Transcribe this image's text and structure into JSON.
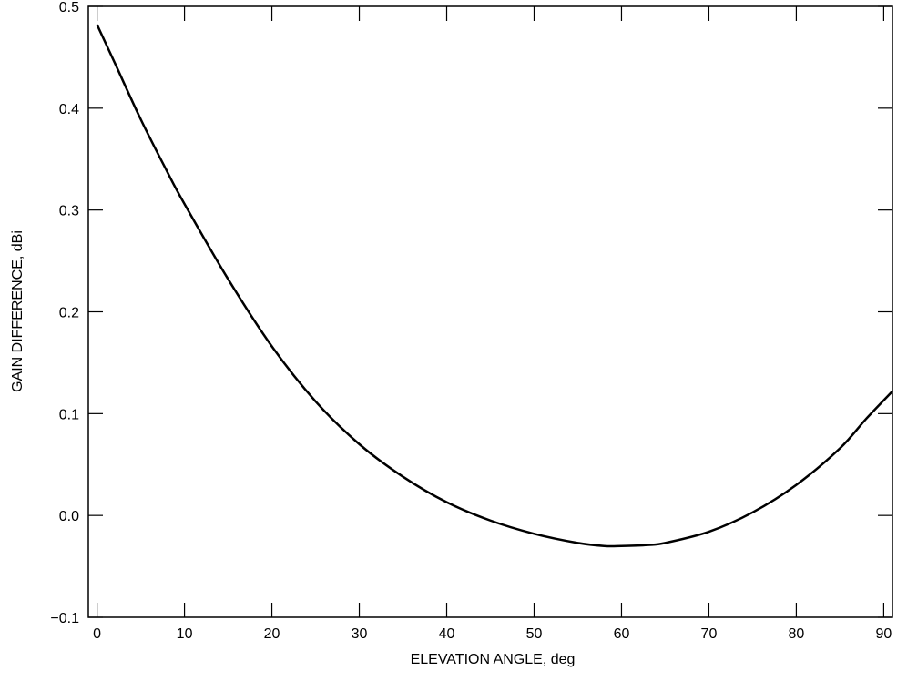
{
  "chart_data": {
    "type": "line",
    "xlabel": "ELEVATION ANGLE, deg",
    "ylabel": "GAIN DIFFERENCE, dBi",
    "xlim": [
      -1,
      91
    ],
    "ylim": [
      -0.1,
      0.5
    ],
    "xticks": [
      0,
      10,
      20,
      30,
      40,
      50,
      60,
      70,
      80,
      90
    ],
    "yticks": [
      -0.1,
      0.0,
      0.1,
      0.2,
      0.3,
      0.4,
      0.5
    ],
    "xtick_labels": [
      "0",
      "10",
      "20",
      "30",
      "40",
      "50",
      "60",
      "70",
      "80",
      "90"
    ],
    "ytick_labels": [
      "−0.1",
      "0.0",
      "0.1",
      "0.2",
      "0.3",
      "0.4",
      "0.5"
    ],
    "grid": false,
    "series": [
      {
        "color": "#000000",
        "x": [
          0,
          2,
          5,
          8,
          10,
          15,
          20,
          25,
          30,
          35,
          40,
          45,
          50,
          55,
          58,
          60,
          63,
          65,
          70,
          75,
          80,
          85,
          88,
          91
        ],
        "y": [
          0.482,
          0.445,
          0.389,
          0.338,
          0.306,
          0.232,
          0.166,
          0.112,
          0.07,
          0.038,
          0.013,
          -0.005,
          -0.018,
          -0.027,
          -0.03,
          -0.03,
          -0.029,
          -0.027,
          -0.016,
          0.003,
          0.03,
          0.066,
          0.095,
          0.122
        ]
      }
    ]
  }
}
